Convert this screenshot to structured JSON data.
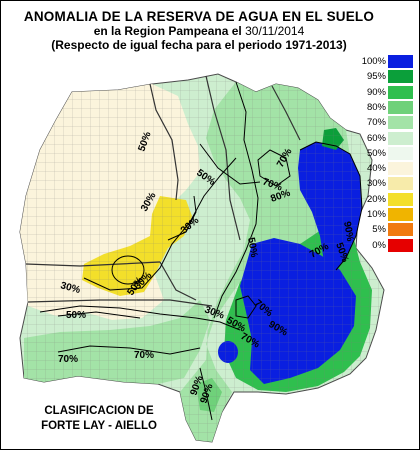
{
  "title": {
    "line1": "ANOMALIA DE LA RESERVA DE AGUA EN EL SUELO",
    "line2_prefix": "en la Region Pampeana el",
    "line2_date": "30/11/2014",
    "line3": "(Respecto de igual fecha para el periodo 1971-2013)"
  },
  "legend": [
    {
      "label": "100%",
      "color": "#0a1fe0"
    },
    {
      "label": "95%",
      "color": "#0b9f3a"
    },
    {
      "label": "90%",
      "color": "#2fbf4e"
    },
    {
      "label": "80%",
      "color": "#6fd17a"
    },
    {
      "label": "70%",
      "color": "#a3e3a7"
    },
    {
      "label": "60%",
      "color": "#cdeecf"
    },
    {
      "label": "50%",
      "color": "#eef8ee"
    },
    {
      "label": "40%",
      "color": "#fbf4dc"
    },
    {
      "label": "30%",
      "color": "#f7ebaa"
    },
    {
      "label": "20%",
      "color": "#f3df2a"
    },
    {
      "label": "10%",
      "color": "#f0b400"
    },
    {
      "label": "5%",
      "color": "#f07a10"
    },
    {
      "label": "0%",
      "color": "#e60000"
    }
  ],
  "contour_labels": [
    "50%",
    "30%",
    "30%",
    "50%",
    "30%",
    "50%",
    "50%",
    "30%",
    "30%",
    "50%",
    "70%",
    "70%",
    "50%",
    "70%",
    "70%",
    "80%",
    "90%",
    "70%",
    "90%",
    "50%",
    "70%",
    "70%",
    "90%",
    "90%"
  ],
  "credit": {
    "line1": "CLASIFICACION DE",
    "line2": "FORTE LAY - AIELLO"
  }
}
